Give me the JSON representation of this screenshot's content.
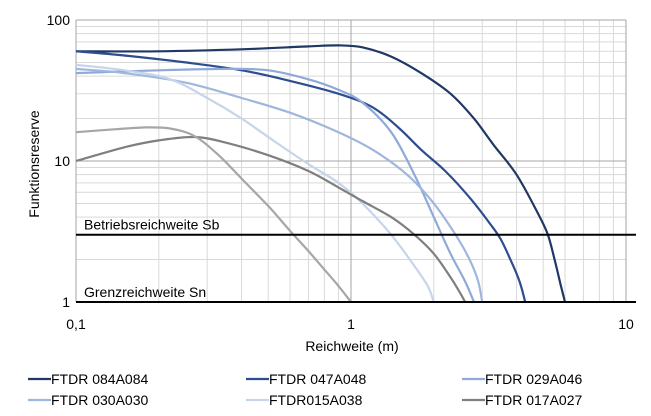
{
  "chart_data": {
    "type": "line",
    "x_scale": "log",
    "y_scale": "log",
    "xlim": [
      0.1,
      10
    ],
    "ylim": [
      1,
      100
    ],
    "xlabel": "Reichweite (m)",
    "ylabel": "Funktionsreserve",
    "x_ticks": [
      {
        "value": 0.1,
        "label": "0,1"
      },
      {
        "value": 1,
        "label": "1"
      },
      {
        "value": 10,
        "label": "10"
      }
    ],
    "y_ticks": [
      {
        "value": 1,
        "label": "1"
      },
      {
        "value": 10,
        "label": "10"
      },
      {
        "value": 100,
        "label": "100"
      }
    ],
    "grid": true,
    "legend_position": "bottom",
    "reference_lines": [
      {
        "label": "Betriebsreichweite Sb",
        "y": 3,
        "color": "#000000"
      },
      {
        "label": "Grenzreichweite Sn",
        "y": 1,
        "color": "#000000"
      }
    ],
    "series": [
      {
        "name": "FTDR 084A084",
        "color": "#1f3864",
        "points": [
          [
            0.1,
            60
          ],
          [
            0.2,
            60
          ],
          [
            0.4,
            62
          ],
          [
            0.7,
            65
          ],
          [
            0.9,
            66
          ],
          [
            1.1,
            64
          ],
          [
            1.4,
            55
          ],
          [
            1.8,
            42
          ],
          [
            2.3,
            30
          ],
          [
            2.8,
            20
          ],
          [
            3.3,
            13
          ],
          [
            4.0,
            8
          ],
          [
            4.8,
            4.2
          ],
          [
            5.2,
            3.0
          ],
          [
            5.5,
            2.0
          ],
          [
            5.8,
            1.3
          ],
          [
            6.0,
            1
          ]
        ]
      },
      {
        "name": "FTDR 047A048",
        "color": "#2e4d8f",
        "points": [
          [
            0.1,
            60
          ],
          [
            0.15,
            56
          ],
          [
            0.25,
            50
          ],
          [
            0.4,
            44
          ],
          [
            0.6,
            37
          ],
          [
            0.9,
            30
          ],
          [
            1.2,
            24
          ],
          [
            1.5,
            17
          ],
          [
            1.8,
            12
          ],
          [
            2.2,
            8.5
          ],
          [
            2.7,
            5.5
          ],
          [
            3.2,
            3.6
          ],
          [
            3.5,
            2.8
          ],
          [
            3.8,
            2.0
          ],
          [
            4.1,
            1.4
          ],
          [
            4.3,
            1
          ]
        ]
      },
      {
        "name": "FTDR 029A046",
        "color": "#8fa9d9",
        "points": [
          [
            0.1,
            42
          ],
          [
            0.2,
            44
          ],
          [
            0.35,
            45
          ],
          [
            0.5,
            44
          ],
          [
            0.7,
            38
          ],
          [
            0.9,
            32
          ],
          [
            1.1,
            26
          ],
          [
            1.4,
            16
          ],
          [
            1.7,
            8
          ],
          [
            2.0,
            4
          ],
          [
            2.3,
            2.2
          ],
          [
            2.6,
            1.4
          ],
          [
            2.8,
            1
          ]
        ]
      },
      {
        "name": "FTDR 030A030",
        "color": "#9fb7dd",
        "points": [
          [
            0.1,
            45
          ],
          [
            0.15,
            42
          ],
          [
            0.25,
            36
          ],
          [
            0.4,
            28
          ],
          [
            0.6,
            22
          ],
          [
            0.9,
            16
          ],
          [
            1.2,
            12
          ],
          [
            1.6,
            8
          ],
          [
            2.0,
            5
          ],
          [
            2.4,
            3.0
          ],
          [
            2.7,
            2
          ],
          [
            2.9,
            1.4
          ],
          [
            3.0,
            1
          ]
        ]
      },
      {
        "name": "FTDR015A038",
        "color": "#c7d4ec",
        "points": [
          [
            0.1,
            48
          ],
          [
            0.15,
            44
          ],
          [
            0.22,
            38
          ],
          [
            0.3,
            28
          ],
          [
            0.4,
            20
          ],
          [
            0.55,
            13
          ],
          [
            0.7,
            9.5
          ],
          [
            0.9,
            7
          ],
          [
            1.1,
            5
          ],
          [
            1.4,
            3
          ],
          [
            1.7,
            1.8
          ],
          [
            1.9,
            1.3
          ],
          [
            2.0,
            1
          ]
        ]
      },
      {
        "name": "FTDR 017A027",
        "color": "#7f7f7f",
        "points": [
          [
            0.1,
            10
          ],
          [
            0.15,
            12.5
          ],
          [
            0.2,
            14
          ],
          [
            0.27,
            14.8
          ],
          [
            0.35,
            13.5
          ],
          [
            0.5,
            11
          ],
          [
            0.7,
            8.5
          ],
          [
            0.9,
            6.5
          ],
          [
            1.1,
            5.2
          ],
          [
            1.4,
            4
          ],
          [
            1.7,
            3.0
          ],
          [
            2.0,
            2.2
          ],
          [
            2.3,
            1.5
          ],
          [
            2.5,
            1.15
          ],
          [
            2.6,
            1
          ]
        ]
      },
      {
        "name": "",
        "color": "#a6a6a6",
        "points": [
          [
            0.1,
            16
          ],
          [
            0.14,
            16.8
          ],
          [
            0.18,
            17.3
          ],
          [
            0.22,
            17
          ],
          [
            0.27,
            15
          ],
          [
            0.33,
            11
          ],
          [
            0.4,
            7.5
          ],
          [
            0.5,
            4.8
          ],
          [
            0.6,
            3.2
          ],
          [
            0.7,
            2.3
          ],
          [
            0.8,
            1.7
          ],
          [
            0.9,
            1.3
          ],
          [
            1.0,
            1
          ]
        ]
      }
    ]
  }
}
